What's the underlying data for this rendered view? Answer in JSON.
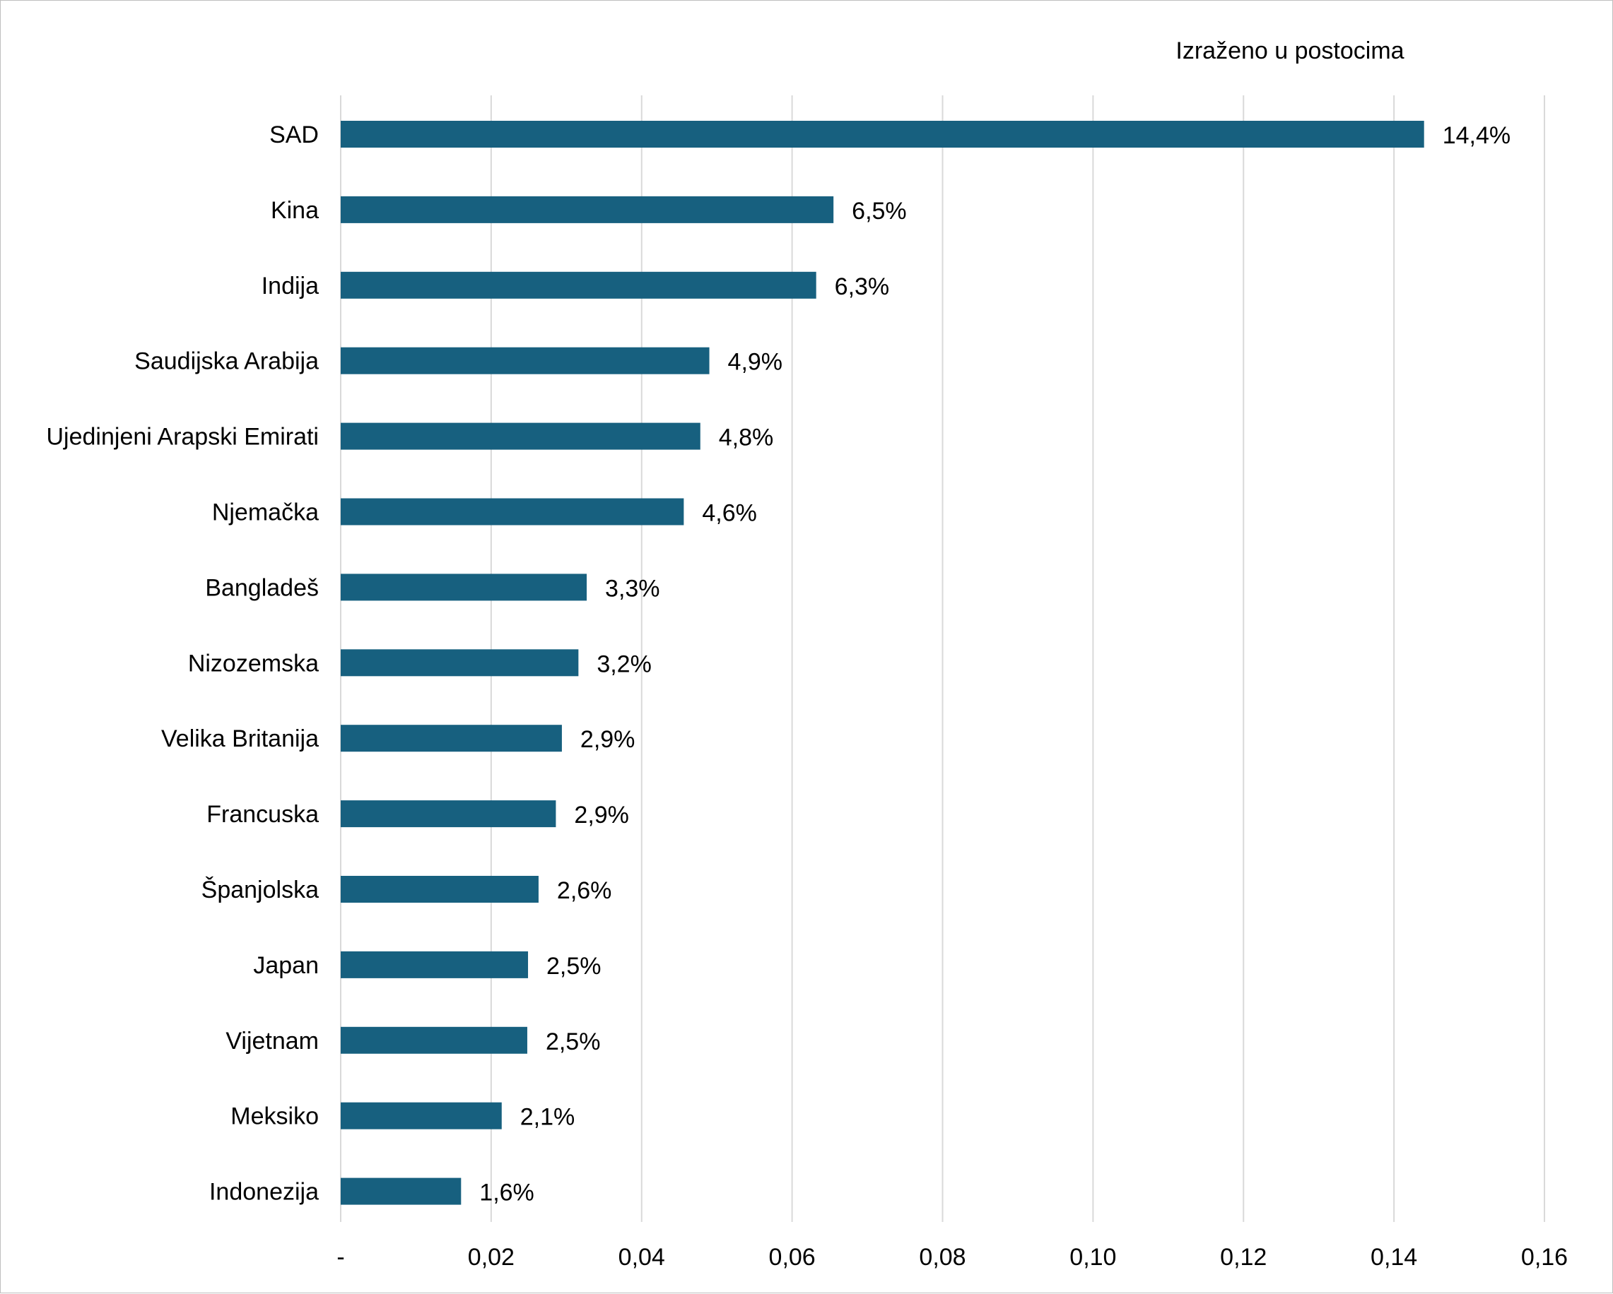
{
  "chart_data": {
    "type": "bar",
    "orientation": "horizontal",
    "annotation": "Izraženo u postocima",
    "categories": [
      "SAD",
      "Kina",
      "Indija",
      "Saudijska Arabija",
      "Ujedinjeni Arapski Emirati",
      "Njemačka",
      "Bangladeš",
      "Nizozemska",
      "Velika Britanija",
      "Francuska",
      "Španjolska",
      "Japan",
      "Vijetnam",
      "Meksiko",
      "Indonezija"
    ],
    "values": [
      0.144,
      0.0655,
      0.0632,
      0.049,
      0.0478,
      0.0456,
      0.0327,
      0.0316,
      0.0294,
      0.0286,
      0.0263,
      0.0249,
      0.0248,
      0.0214,
      0.016
    ],
    "data_labels": [
      "14,4%",
      "6,5%",
      "6,3%",
      "4,9%",
      "4,8%",
      "4,6%",
      "3,3%",
      "3,2%",
      "2,9%",
      "2,9%",
      "2,6%",
      "2,5%",
      "2,5%",
      "2,1%",
      "1,6%"
    ],
    "x_ticks": [
      0,
      0.02,
      0.04,
      0.06,
      0.08,
      0.1,
      0.12,
      0.14,
      0.16
    ],
    "x_tick_labels": [
      "-",
      "0,02",
      "0,04",
      "0,06",
      "0,08",
      "0,10",
      "0,12",
      "0,14",
      "0,16"
    ],
    "xlim": [
      0,
      0.16
    ],
    "xlabel": "",
    "ylabel": "",
    "grid": "vertical",
    "legend": "none",
    "bar_color": "#17607f",
    "grid_color": "#d9d9d9"
  }
}
